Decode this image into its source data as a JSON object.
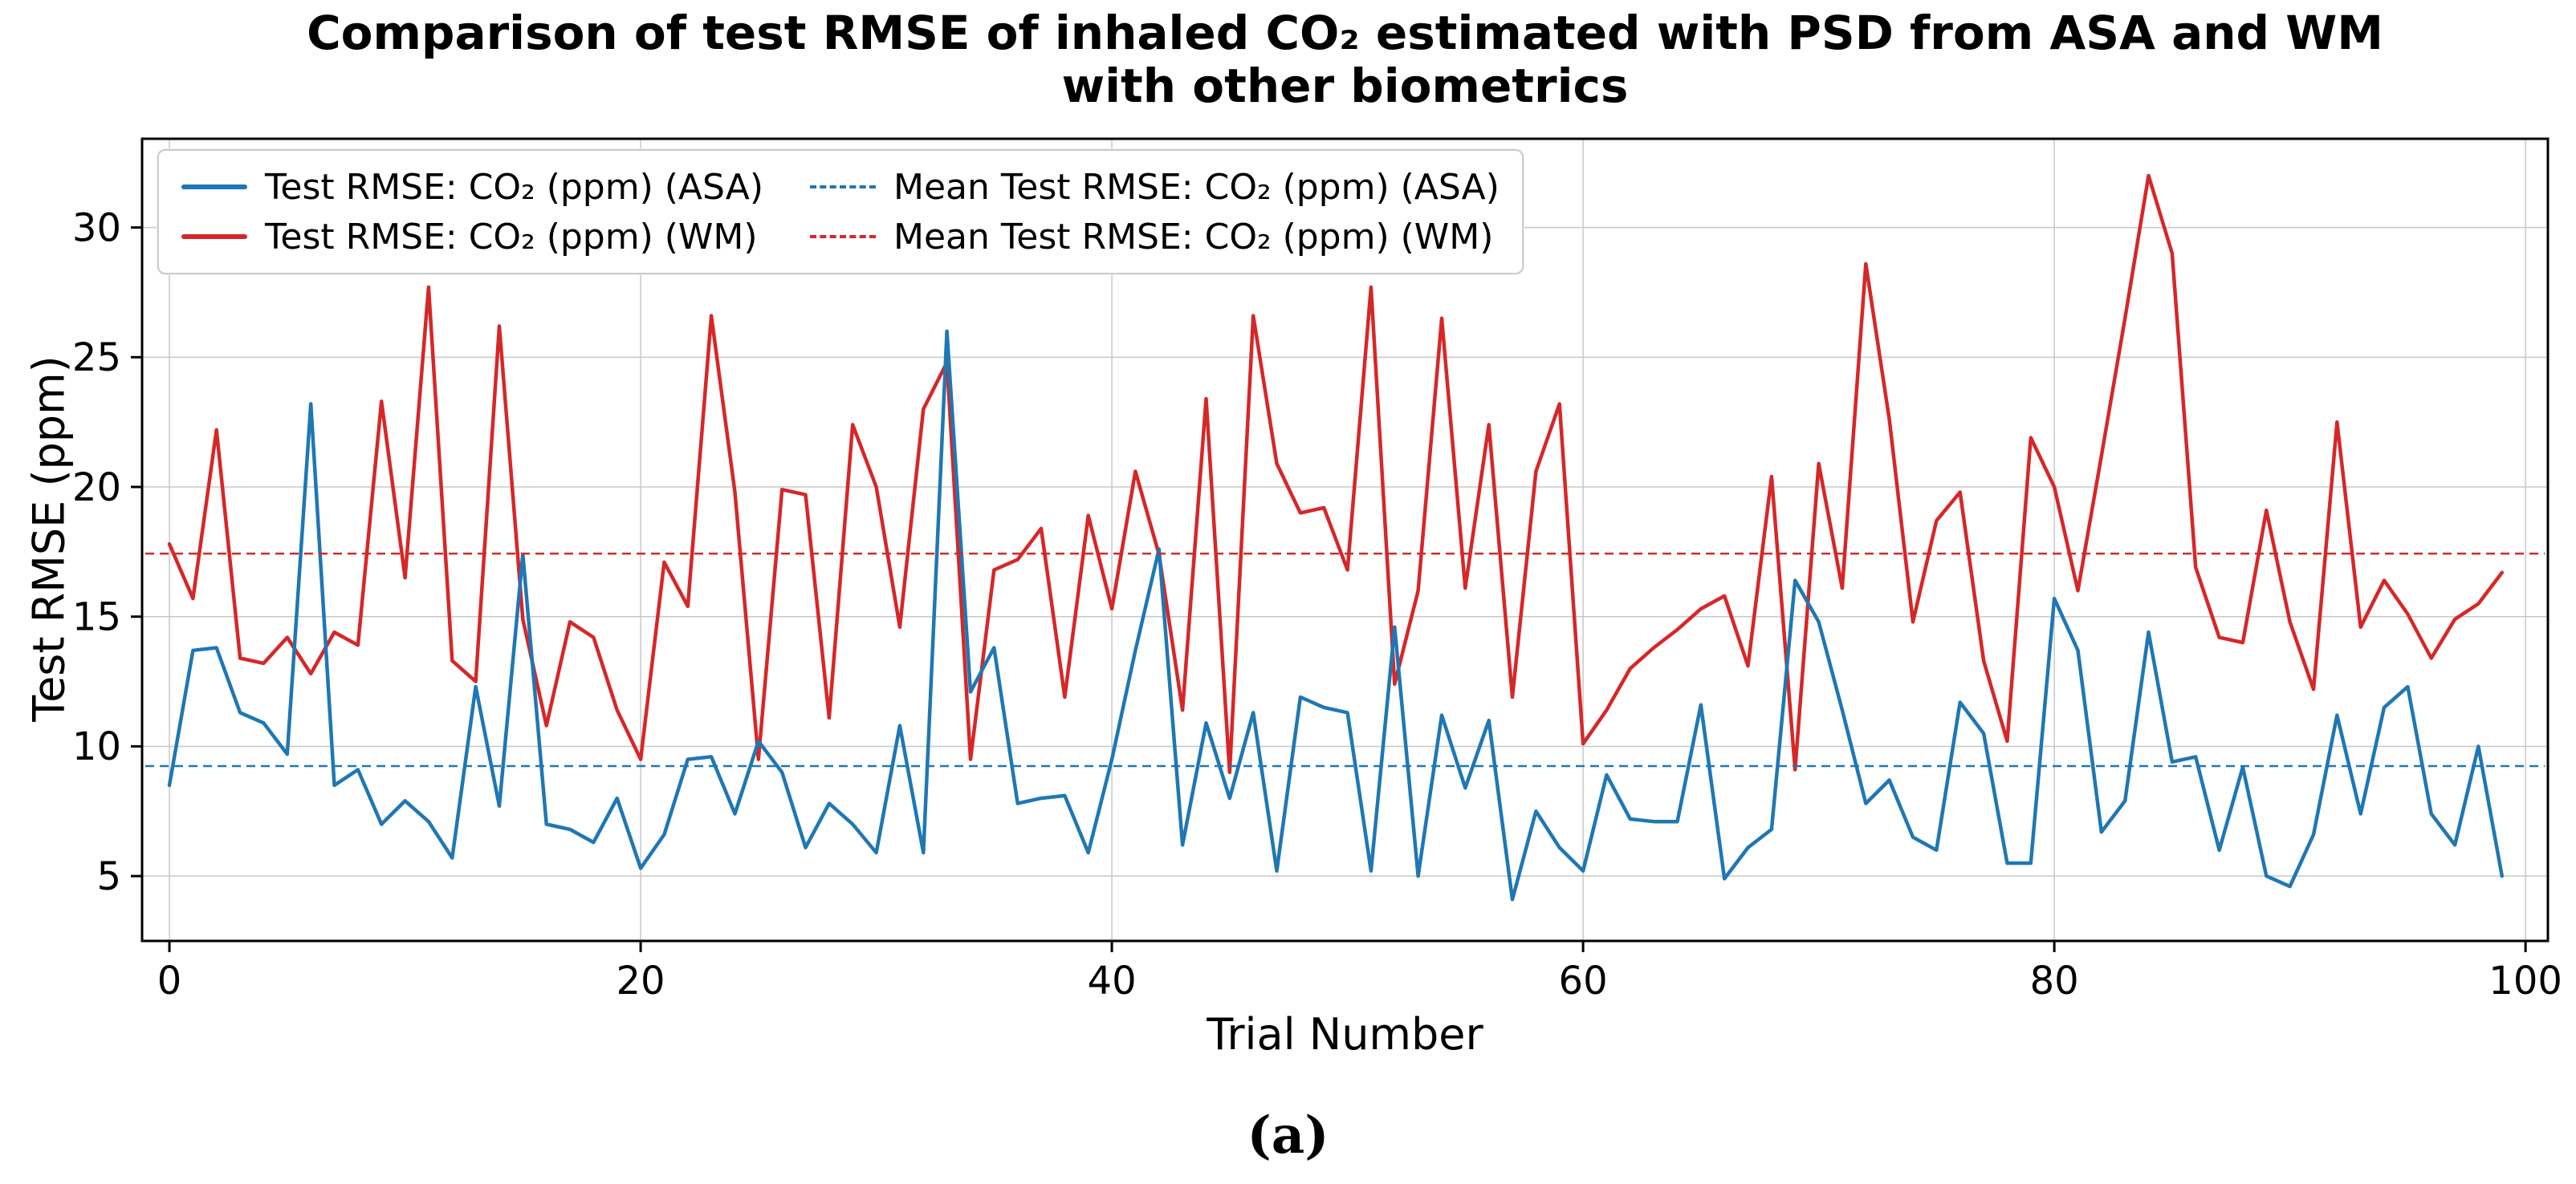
{
  "figure": {
    "title_line1": "Comparison of test RMSE of inhaled CO₂ estimated with PSD from ASA and WM",
    "title_line2": "with other biometrics",
    "caption": "(a)"
  },
  "legend": {
    "position": "upper left",
    "items": [
      {
        "label": "Test RMSE: CO₂ (ppm) (ASA)",
        "style": "solid",
        "color": "#1f77b4"
      },
      {
        "label": "Test RMSE: CO₂ (ppm) (WM)",
        "style": "solid",
        "color": "#d62728"
      },
      {
        "label": "Mean Test RMSE: CO₂ (ppm) (ASA)",
        "style": "dashed",
        "color": "#1f77b4"
      },
      {
        "label": "Mean Test RMSE: CO₂ (ppm) (WM)",
        "style": "dashed",
        "color": "#d62728"
      }
    ]
  },
  "chart_data": {
    "type": "line",
    "title": "Comparison of test RMSE of inhaled CO₂ estimated with PSD from ASA and WM with other biometrics",
    "xlabel": "Trial Number",
    "ylabel": "Test RMSE (ppm)",
    "x_is_trial_index": true,
    "x_start": 0,
    "xlim": [
      -1.16,
      100.95
    ],
    "ylim": [
      2.5,
      33.42
    ],
    "x_ticks": [
      0,
      20,
      40,
      60,
      80,
      100
    ],
    "y_ticks": [
      5,
      10,
      15,
      20,
      25,
      30
    ],
    "grid": true,
    "colors": {
      "asa": "#1f77b4",
      "wm": "#d62728",
      "gridline": "#c8c8c8",
      "spine": "#000000"
    },
    "series": [
      {
        "name": "Test RMSE: CO₂ (ppm) (ASA)",
        "key": "asa",
        "color": "#1f77b4",
        "values": [
          8.5,
          13.7,
          13.8,
          11.3,
          10.9,
          9.7,
          23.2,
          8.5,
          9.1,
          7.0,
          7.9,
          7.1,
          5.7,
          12.3,
          7.7,
          17.4,
          7.0,
          6.8,
          6.3,
          8.0,
          5.3,
          6.6,
          9.5,
          9.6,
          7.4,
          10.2,
          9.0,
          6.1,
          7.8,
          7.0,
          5.9,
          10.8,
          5.9,
          26.0,
          12.1,
          13.8,
          7.8,
          8.0,
          8.1,
          5.9,
          9.5,
          13.7,
          17.6,
          6.2,
          10.9,
          8.0,
          11.3,
          5.2,
          11.9,
          11.5,
          11.3,
          5.2,
          14.6,
          5.0,
          11.2,
          8.4,
          11.0,
          4.1,
          7.5,
          6.1,
          5.2,
          8.9,
          7.2,
          7.1,
          7.1,
          11.6,
          4.9,
          6.1,
          6.8,
          16.4,
          14.8,
          11.4,
          7.8,
          8.7,
          6.5,
          6.0,
          11.7,
          10.5,
          5.5,
          5.5,
          15.7,
          13.7,
          6.7,
          7.9,
          14.4,
          9.4,
          9.6,
          6.0,
          9.2,
          5.0,
          4.6,
          6.6,
          11.2,
          7.4,
          11.5,
          12.3,
          7.4,
          6.2,
          10.0,
          5.0
        ]
      },
      {
        "name": "Test RMSE: CO₂ (ppm) (WM)",
        "key": "wm",
        "color": "#d62728",
        "values": [
          17.8,
          15.7,
          22.2,
          13.4,
          13.2,
          14.2,
          12.8,
          14.4,
          13.9,
          23.3,
          16.5,
          27.7,
          13.3,
          12.5,
          26.2,
          14.9,
          10.8,
          14.8,
          14.2,
          11.4,
          9.5,
          17.1,
          15.4,
          26.6,
          19.8,
          9.5,
          19.9,
          19.7,
          11.1,
          22.4,
          20.0,
          14.6,
          23.0,
          24.8,
          9.5,
          16.8,
          17.2,
          18.4,
          11.9,
          18.9,
          15.3,
          20.6,
          17.4,
          11.4,
          23.4,
          9.0,
          26.6,
          20.9,
          19.0,
          19.2,
          16.8,
          27.7,
          12.4,
          16.0,
          26.5,
          16.1,
          22.4,
          11.9,
          20.6,
          23.2,
          10.1,
          11.4,
          13.0,
          13.8,
          14.5,
          15.3,
          15.8,
          13.1,
          20.4,
          9.1,
          20.9,
          16.1,
          28.6,
          22.6,
          14.8,
          18.7,
          19.8,
          13.3,
          10.2,
          21.9,
          20.0,
          16.0,
          21.2,
          26.5,
          32.0,
          29.0,
          16.9,
          14.2,
          14.0,
          19.1,
          14.8,
          12.2,
          22.5,
          14.6,
          16.4,
          15.1,
          13.4,
          14.9,
          15.5,
          16.7
        ]
      }
    ],
    "mean_lines": [
      {
        "series_key": "asa",
        "label": "Mean Test RMSE: CO₂ (ppm) (ASA)",
        "color": "#1f77b4",
        "value": 9.24
      },
      {
        "series_key": "wm",
        "label": "Mean Test RMSE: CO₂ (ppm) (WM)",
        "color": "#d62728",
        "value": 17.43
      }
    ]
  }
}
